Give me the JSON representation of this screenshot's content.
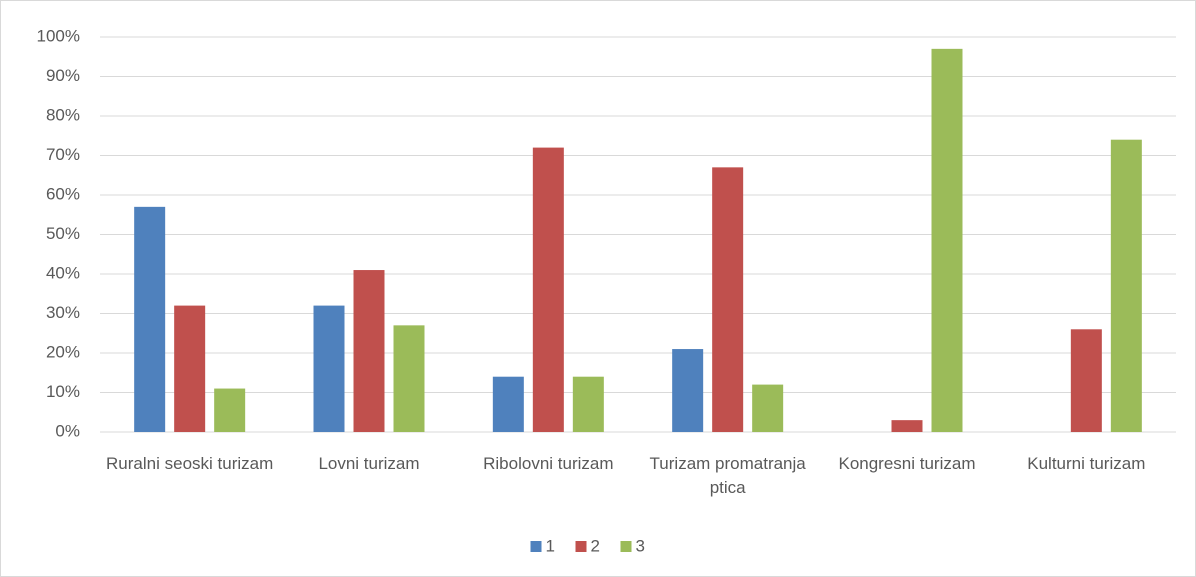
{
  "chart_data": {
    "type": "bar",
    "categories": [
      "Ruralni seoski turizam",
      "Lovni turizam",
      "Ribolovni turizam",
      "Turizam promatranja ptica",
      "Kongresni turizam",
      "Kulturni turizam"
    ],
    "series": [
      {
        "name": "1",
        "color": "#4f81bd",
        "values": [
          57,
          32,
          14,
          21,
          0,
          0
        ]
      },
      {
        "name": "2",
        "color": "#c0504d",
        "values": [
          32,
          41,
          72,
          67,
          3,
          26
        ]
      },
      {
        "name": "3",
        "color": "#9bbb59",
        "values": [
          11,
          27,
          14,
          12,
          97,
          74
        ]
      }
    ],
    "ylim": [
      0,
      100
    ],
    "yticks": [
      {
        "value": 0,
        "label": "0%"
      },
      {
        "value": 10,
        "label": "10%"
      },
      {
        "value": 20,
        "label": "20%"
      },
      {
        "value": 30,
        "label": "30%"
      },
      {
        "value": 40,
        "label": "40%"
      },
      {
        "value": 50,
        "label": "50%"
      },
      {
        "value": 60,
        "label": "60%"
      },
      {
        "value": 70,
        "label": "70%"
      },
      {
        "value": 80,
        "label": "80%"
      },
      {
        "value": 90,
        "label": "90%"
      },
      {
        "value": 100,
        "label": "100%"
      }
    ],
    "grid": true,
    "legend": "bottom"
  }
}
